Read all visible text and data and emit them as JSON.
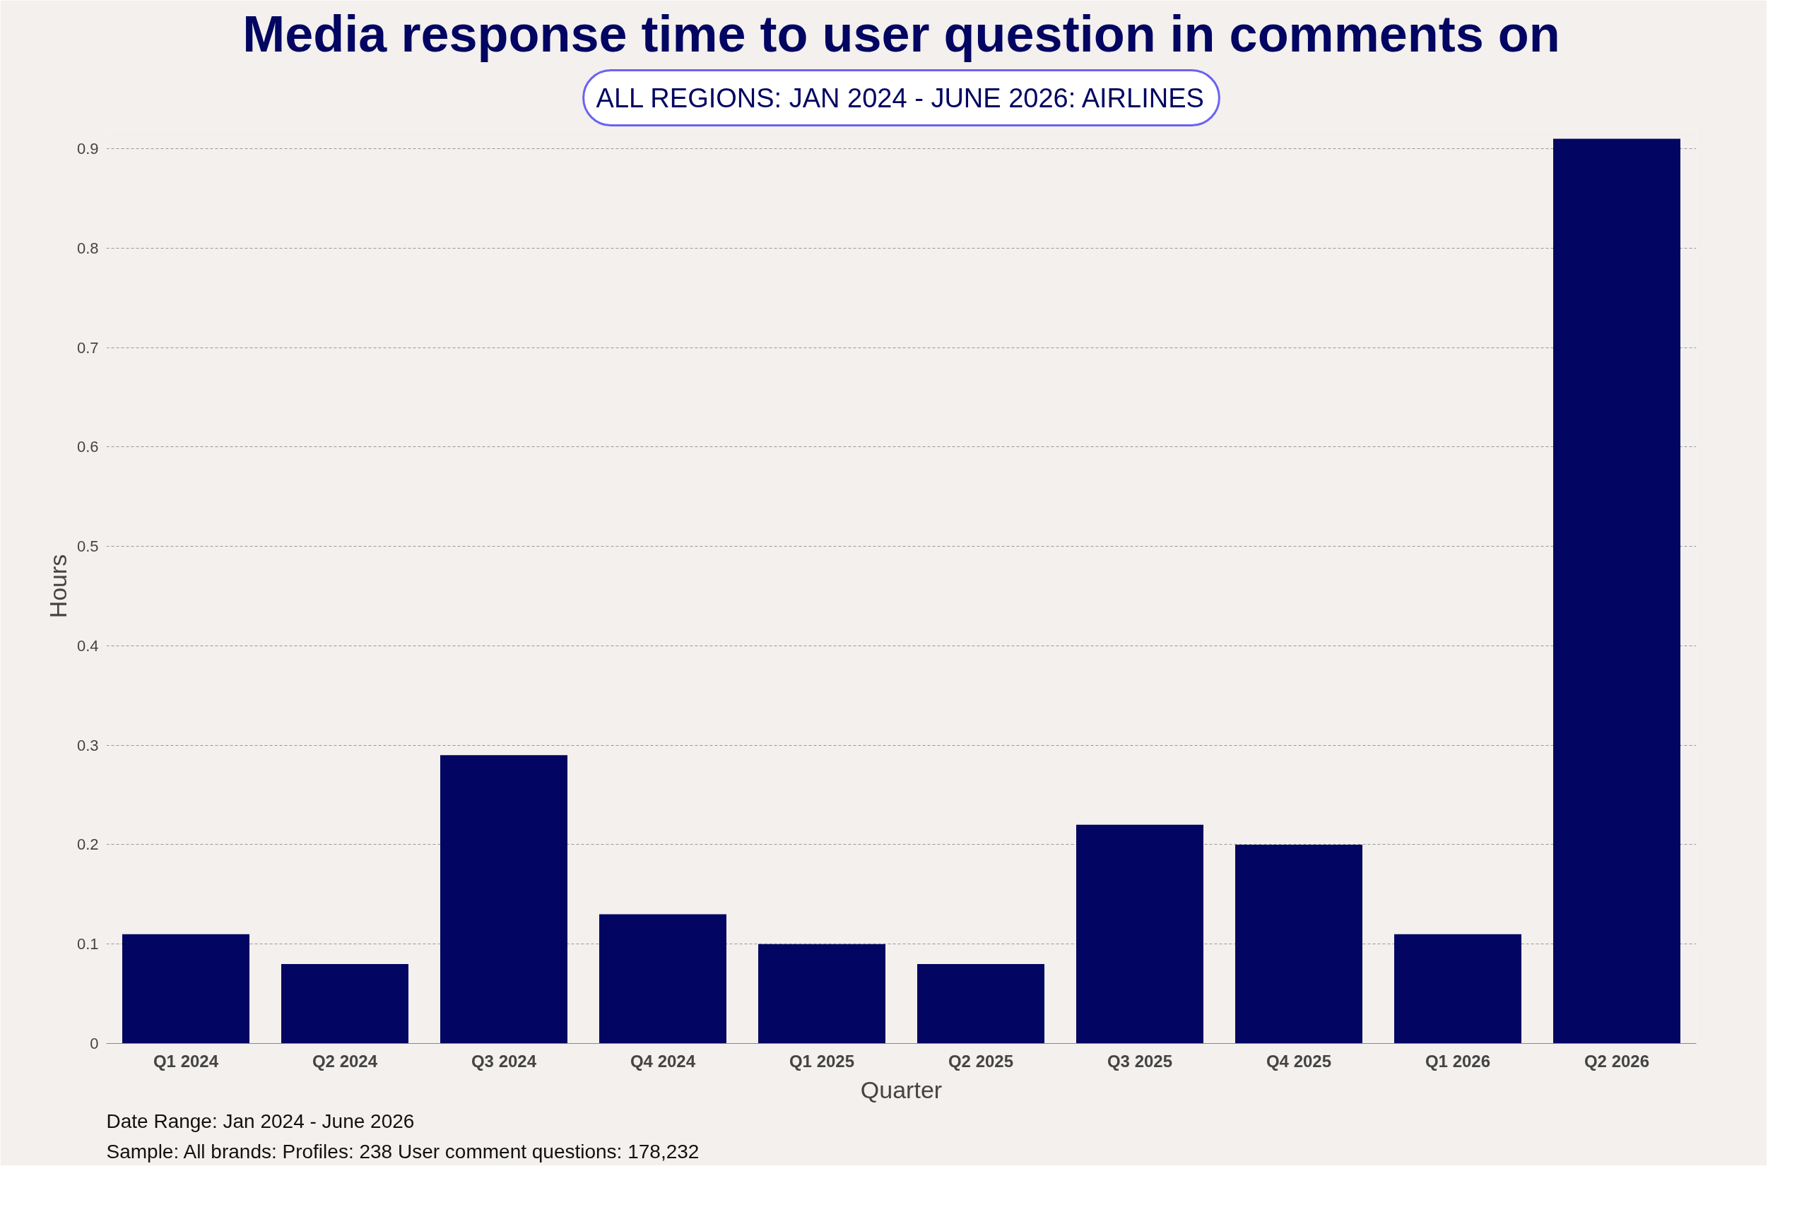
{
  "chart_data": {
    "type": "bar",
    "title": "Media response time to user question in comments on",
    "subtitle": "ALL REGIONS: JAN 2024 - JUNE 2026: AIRLINES",
    "xlabel": "Quarter",
    "ylabel": "Hours",
    "categories": [
      "Q1 2024",
      "Q2 2024",
      "Q3 2024",
      "Q4 2024",
      "Q1 2025",
      "Q2 2025",
      "Q3 2025",
      "Q4 2025",
      "Q1 2026",
      "Q2 2026"
    ],
    "values": [
      0.11,
      0.08,
      0.29,
      0.13,
      0.1,
      0.08,
      0.22,
      0.2,
      0.11,
      0.91
    ],
    "color": "#020561",
    "ylim": [
      0,
      0.92
    ],
    "yticks": [
      {
        "value": 0,
        "label": "0"
      },
      0.1,
      0.2,
      0.3,
      0.4,
      0.5,
      0.6,
      0.7,
      0.8,
      0.9
    ],
    "grid": "y",
    "annotations": [
      "Date Range: Jan 2024 - June 2026",
      "Sample: All brands: Profiles: 238 User comment questions: 178,232"
    ]
  }
}
